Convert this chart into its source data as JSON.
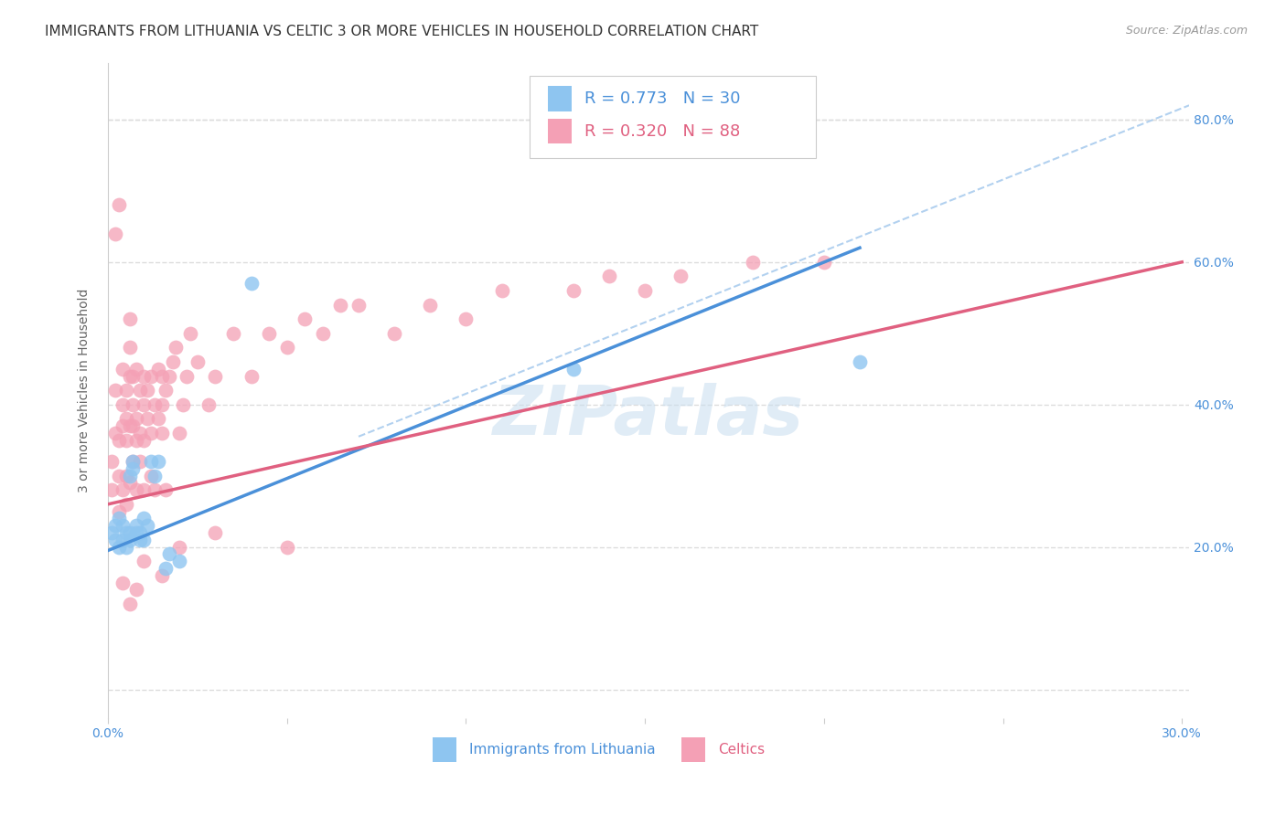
{
  "title": "IMMIGRANTS FROM LITHUANIA VS CELTIC 3 OR MORE VEHICLES IN HOUSEHOLD CORRELATION CHART",
  "source": "Source: ZipAtlas.com",
  "ylabel": "3 or more Vehicles in Household",
  "xlim": [
    0.0,
    0.302
  ],
  "ylim": [
    -0.04,
    0.88
  ],
  "x_ticks": [
    0.0,
    0.05,
    0.1,
    0.15,
    0.2,
    0.25,
    0.3
  ],
  "x_tick_labels": [
    "0.0%",
    "",
    "",
    "",
    "",
    "",
    "30.0%"
  ],
  "y_ticks": [
    0.0,
    0.2,
    0.4,
    0.6,
    0.8
  ],
  "y_right_labels": [
    "",
    "20.0%",
    "40.0%",
    "60.0%",
    "80.0%"
  ],
  "legend_r1": "R = 0.773",
  "legend_n1": "N = 30",
  "legend_r2": "R = 0.320",
  "legend_n2": "N = 88",
  "legend_label1": "Immigrants from Lithuania",
  "legend_label2": "Celtics",
  "color_blue": "#8EC5F0",
  "color_pink": "#F4A0B5",
  "line_color_blue": "#4A90D9",
  "line_color_pink": "#E06080",
  "dashed_line_color": "#AACCEE",
  "title_color": "#333333",
  "axis_label_color": "#666666",
  "tick_color": "#4A90D9",
  "background_color": "#FFFFFF",
  "watermark": "ZIPatlas",
  "grid_color": "#DDDDDD",
  "blue_x": [
    0.001,
    0.002,
    0.002,
    0.003,
    0.003,
    0.004,
    0.004,
    0.005,
    0.005,
    0.006,
    0.006,
    0.006,
    0.007,
    0.007,
    0.008,
    0.008,
    0.009,
    0.009,
    0.01,
    0.01,
    0.011,
    0.012,
    0.013,
    0.014,
    0.016,
    0.017,
    0.02,
    0.04,
    0.13,
    0.21
  ],
  "blue_y": [
    0.22,
    0.23,
    0.21,
    0.24,
    0.2,
    0.21,
    0.23,
    0.22,
    0.2,
    0.22,
    0.21,
    0.3,
    0.32,
    0.31,
    0.22,
    0.23,
    0.21,
    0.22,
    0.24,
    0.21,
    0.23,
    0.32,
    0.3,
    0.32,
    0.17,
    0.19,
    0.18,
    0.57,
    0.45,
    0.46
  ],
  "pink_x": [
    0.001,
    0.001,
    0.002,
    0.002,
    0.003,
    0.003,
    0.003,
    0.004,
    0.004,
    0.004,
    0.004,
    0.005,
    0.005,
    0.005,
    0.005,
    0.005,
    0.006,
    0.006,
    0.006,
    0.006,
    0.006,
    0.007,
    0.007,
    0.007,
    0.007,
    0.008,
    0.008,
    0.008,
    0.008,
    0.009,
    0.009,
    0.009,
    0.01,
    0.01,
    0.01,
    0.01,
    0.011,
    0.011,
    0.012,
    0.012,
    0.012,
    0.013,
    0.013,
    0.014,
    0.014,
    0.015,
    0.015,
    0.015,
    0.016,
    0.016,
    0.017,
    0.018,
    0.019,
    0.02,
    0.021,
    0.022,
    0.023,
    0.025,
    0.028,
    0.03,
    0.035,
    0.04,
    0.045,
    0.05,
    0.055,
    0.06,
    0.065,
    0.07,
    0.08,
    0.09,
    0.1,
    0.11,
    0.13,
    0.14,
    0.15,
    0.16,
    0.18,
    0.2,
    0.002,
    0.003,
    0.004,
    0.006,
    0.008,
    0.01,
    0.015,
    0.02,
    0.03,
    0.05
  ],
  "pink_y": [
    0.28,
    0.32,
    0.36,
    0.42,
    0.35,
    0.25,
    0.3,
    0.4,
    0.28,
    0.45,
    0.37,
    0.26,
    0.35,
    0.42,
    0.38,
    0.3,
    0.44,
    0.37,
    0.48,
    0.29,
    0.52,
    0.37,
    0.44,
    0.32,
    0.4,
    0.38,
    0.45,
    0.28,
    0.35,
    0.42,
    0.32,
    0.36,
    0.35,
    0.4,
    0.28,
    0.44,
    0.38,
    0.42,
    0.36,
    0.44,
    0.3,
    0.4,
    0.28,
    0.45,
    0.38,
    0.4,
    0.36,
    0.44,
    0.42,
    0.28,
    0.44,
    0.46,
    0.48,
    0.36,
    0.4,
    0.44,
    0.5,
    0.46,
    0.4,
    0.44,
    0.5,
    0.44,
    0.5,
    0.48,
    0.52,
    0.5,
    0.54,
    0.54,
    0.5,
    0.54,
    0.52,
    0.56,
    0.56,
    0.58,
    0.56,
    0.58,
    0.6,
    0.6,
    0.64,
    0.68,
    0.15,
    0.12,
    0.14,
    0.18,
    0.16,
    0.2,
    0.22,
    0.2
  ],
  "blue_line": [
    0.0,
    0.21,
    0.195,
    0.62
  ],
  "pink_line": [
    0.0,
    0.3,
    0.26,
    0.6
  ],
  "dashed_line": [
    0.07,
    0.302,
    0.355,
    0.82
  ],
  "title_fontsize": 11,
  "axis_fontsize": 10,
  "tick_fontsize": 10,
  "legend_fontsize": 13
}
